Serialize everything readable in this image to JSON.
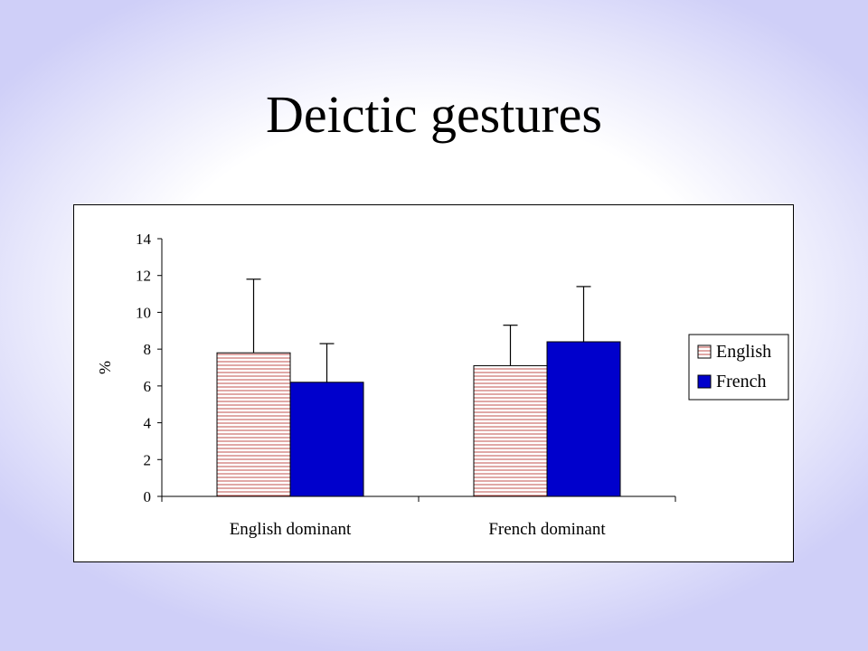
{
  "slide": {
    "title": "Deictic gestures"
  },
  "colors": {
    "english_stripe": "#c0504d",
    "french_fill": "#0000cc",
    "background": "#cfcff8"
  },
  "chart_data": {
    "type": "bar",
    "title": "",
    "xlabel": "",
    "ylabel": "%",
    "ylim": [
      0,
      14
    ],
    "yticks": [
      0,
      2,
      4,
      6,
      8,
      10,
      12,
      14
    ],
    "categories": [
      "English dominant",
      "French dominant"
    ],
    "series": [
      {
        "name": "English",
        "values": [
          7.8,
          7.1
        ],
        "error_upper": [
          11.8,
          9.3
        ],
        "pattern": "horizontal-stripes"
      },
      {
        "name": "French",
        "values": [
          6.2,
          8.4
        ],
        "error_upper": [
          8.3,
          11.4
        ],
        "pattern": "solid"
      }
    ],
    "error_bars": "upper",
    "legend_position": "right",
    "grid": false
  }
}
